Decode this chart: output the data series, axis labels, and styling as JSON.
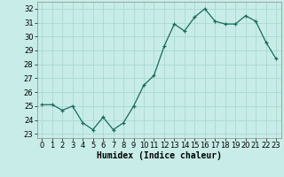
{
  "hours": [
    0,
    1,
    2,
    3,
    4,
    5,
    6,
    7,
    8,
    9,
    10,
    11,
    12,
    13,
    14,
    15,
    16,
    17,
    18,
    19,
    20,
    21,
    22,
    23
  ],
  "values": [
    25.1,
    25.1,
    24.7,
    25.0,
    23.8,
    23.3,
    24.2,
    23.3,
    23.8,
    25.0,
    26.5,
    27.2,
    29.3,
    30.9,
    30.4,
    31.4,
    32.0,
    31.1,
    30.9,
    30.9,
    31.5,
    31.1,
    29.6,
    28.4
  ],
  "line_color": "#1a6b5a",
  "bg_color": "#c8ede8",
  "grid_color": "#aad8d2",
  "xlabel": "Humidex (Indice chaleur)",
  "ylim": [
    22.7,
    32.5
  ],
  "yticks": [
    23,
    24,
    25,
    26,
    27,
    28,
    29,
    30,
    31,
    32
  ],
  "xlim": [
    -0.5,
    23.5
  ],
  "xticks": [
    0,
    1,
    2,
    3,
    4,
    5,
    6,
    7,
    8,
    9,
    10,
    11,
    12,
    13,
    14,
    15,
    16,
    17,
    18,
    19,
    20,
    21,
    22,
    23
  ],
  "xlabel_fontsize": 7,
  "tick_fontsize": 6
}
